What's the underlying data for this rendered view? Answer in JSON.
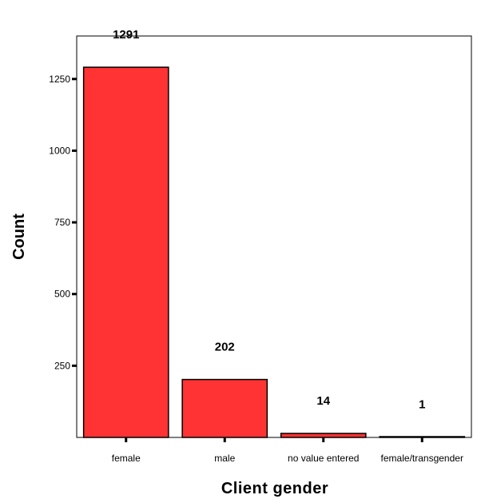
{
  "chart_data": {
    "type": "bar",
    "categories": [
      "female",
      "male",
      "no value entered",
      "female/transgender"
    ],
    "values": [
      1291,
      202,
      14,
      1
    ],
    "data_labels": [
      "1291",
      "202",
      "14",
      "1"
    ],
    "xlabel": "Client gender",
    "ylabel": "Count",
    "yticks": [
      250,
      500,
      750,
      1000,
      1250
    ],
    "ylim": [
      0,
      1400
    ],
    "grid": false,
    "bar_color": "#ff3333",
    "bar_edge_color": "#000000"
  }
}
